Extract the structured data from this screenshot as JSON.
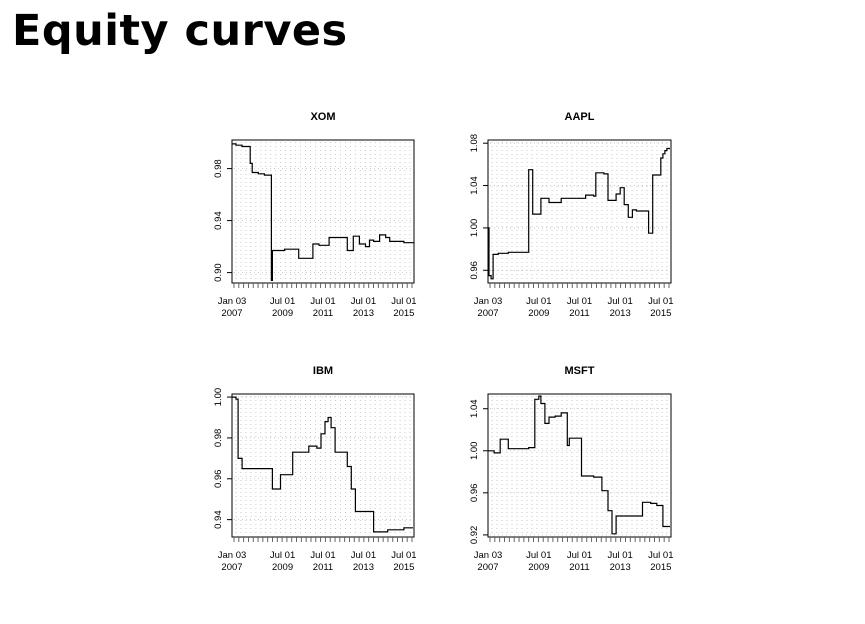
{
  "page_title": "Equity curves",
  "chart_data": [
    {
      "type": "line",
      "title": "XOM",
      "x_tick_labels": [
        [
          "Jan 03",
          "2007"
        ],
        [
          "Jul 01",
          "2009"
        ],
        [
          "Jul 01",
          "2011"
        ],
        [
          "Jul 01",
          "2013"
        ],
        [
          "Jul 01",
          "2015"
        ]
      ],
      "x_tick_positions": [
        2007.0,
        2009.5,
        2011.5,
        2013.5,
        2015.5
      ],
      "xlim": [
        2007.0,
        2016.0
      ],
      "y_ticks": [
        0.9,
        0.94,
        0.98
      ],
      "y_tick_labels": [
        "0.90",
        "0.94",
        "0.98"
      ],
      "ylim": [
        0.892,
        1.002
      ],
      "series": [
        {
          "x": [
            2007.0,
            2007.2,
            2007.5,
            2007.9,
            2008.0,
            2008.3,
            2008.6,
            2008.9,
            2008.95,
            2009.0,
            2009.6,
            2009.9,
            2010.3,
            2010.7,
            2011.0,
            2011.3,
            2011.8,
            2012.0,
            2012.3,
            2012.5,
            2012.7,
            2013.0,
            2013.3,
            2013.6,
            2013.8,
            2014.0,
            2014.3,
            2014.6,
            2014.8,
            2015.0,
            2015.5,
            2016.0
          ],
          "y": [
            0.999,
            0.998,
            0.997,
            0.984,
            0.977,
            0.976,
            0.975,
            0.975,
            0.894,
            0.917,
            0.918,
            0.918,
            0.911,
            0.911,
            0.922,
            0.921,
            0.927,
            0.927,
            0.927,
            0.927,
            0.917,
            0.928,
            0.922,
            0.92,
            0.925,
            0.924,
            0.929,
            0.927,
            0.924,
            0.924,
            0.923,
            0.923
          ]
        }
      ]
    },
    {
      "type": "line",
      "title": "AAPL",
      "x_tick_labels": [
        [
          "Jan 03",
          "2007"
        ],
        [
          "Jul 01",
          "2009"
        ],
        [
          "Jul 01",
          "2011"
        ],
        [
          "Jul 01",
          "2013"
        ],
        [
          "Jul 01",
          "2015"
        ]
      ],
      "x_tick_positions": [
        2007.0,
        2009.5,
        2011.5,
        2013.5,
        2015.5
      ],
      "xlim": [
        2007.0,
        2016.0
      ],
      "y_ticks": [
        0.96,
        1.0,
        1.04,
        1.08
      ],
      "y_tick_labels": [
        "0.96",
        "1.00",
        "1.04",
        "1.08"
      ],
      "ylim": [
        0.948,
        1.083
      ],
      "series": [
        {
          "x": [
            2007.0,
            2007.05,
            2007.15,
            2007.25,
            2007.5,
            2008.0,
            2008.5,
            2008.9,
            2009.0,
            2009.2,
            2009.55,
            2009.6,
            2010.0,
            2010.4,
            2010.6,
            2011.0,
            2011.4,
            2011.8,
            2012.0,
            2012.2,
            2012.3,
            2012.7,
            2012.9,
            2013.1,
            2013.3,
            2013.5,
            2013.7,
            2013.9,
            2014.1,
            2014.3,
            2014.6,
            2014.8,
            2014.9,
            2015.1,
            2015.3,
            2015.5,
            2015.6,
            2015.7,
            2015.8
          ],
          "y": [
            1.0,
            0.955,
            0.952,
            0.975,
            0.976,
            0.977,
            0.977,
            0.977,
            1.055,
            1.013,
            1.013,
            1.028,
            1.024,
            1.024,
            1.028,
            1.028,
            1.028,
            1.031,
            1.031,
            1.03,
            1.052,
            1.051,
            1.026,
            1.026,
            1.032,
            1.038,
            1.022,
            1.01,
            1.017,
            1.016,
            1.016,
            1.016,
            0.995,
            1.05,
            1.05,
            1.066,
            1.07,
            1.073,
            1.075
          ]
        }
      ]
    },
    {
      "type": "line",
      "title": "IBM",
      "x_tick_labels": [
        [
          "Jan 03",
          "2007"
        ],
        [
          "Jul 01",
          "2009"
        ],
        [
          "Jul 01",
          "2011"
        ],
        [
          "Jul 01",
          "2013"
        ],
        [
          "Jul 01",
          "2015"
        ]
      ],
      "x_tick_positions": [
        2007.0,
        2009.5,
        2011.5,
        2013.5,
        2015.5
      ],
      "xlim": [
        2007.0,
        2016.0
      ],
      "y_ticks": [
        0.94,
        0.96,
        0.98,
        1.0
      ],
      "y_tick_labels": [
        "0.94",
        "0.96",
        "0.98",
        "1.00"
      ],
      "ylim": [
        0.9315,
        1.0015
      ],
      "series": [
        {
          "x": [
            2007.0,
            2007.2,
            2007.3,
            2007.5,
            2008.0,
            2008.7,
            2009.0,
            2009.2,
            2009.4,
            2009.6,
            2010.0,
            2010.3,
            2010.8,
            2011.0,
            2011.2,
            2011.4,
            2011.6,
            2011.75,
            2011.9,
            2012.1,
            2012.4,
            2012.7,
            2012.9,
            2013.1,
            2013.4,
            2013.7,
            2014.0,
            2014.3,
            2014.7,
            2015.0,
            2015.3,
            2015.5,
            2015.9
          ],
          "y": [
            1.0,
            0.999,
            0.97,
            0.965,
            0.965,
            0.965,
            0.955,
            0.955,
            0.962,
            0.962,
            0.973,
            0.973,
            0.976,
            0.976,
            0.975,
            0.982,
            0.988,
            0.99,
            0.985,
            0.973,
            0.973,
            0.966,
            0.955,
            0.944,
            0.944,
            0.944,
            0.934,
            0.934,
            0.935,
            0.935,
            0.935,
            0.936,
            0.936
          ]
        }
      ]
    },
    {
      "type": "line",
      "title": "MSFT",
      "x_tick_labels": [
        [
          "Jan 03",
          "2007"
        ],
        [
          "Jul 01",
          "2009"
        ],
        [
          "Jul 01",
          "2011"
        ],
        [
          "Jul 01",
          "2013"
        ],
        [
          "Jul 01",
          "2015"
        ]
      ],
      "x_tick_positions": [
        2007.0,
        2009.5,
        2011.5,
        2013.5,
        2015.5
      ],
      "xlim": [
        2007.0,
        2016.0
      ],
      "y_ticks": [
        0.92,
        0.96,
        1.0,
        1.04
      ],
      "y_tick_labels": [
        "0.92",
        "0.96",
        "1.00",
        "1.04"
      ],
      "ylim": [
        0.918,
        1.054
      ],
      "series": [
        {
          "x": [
            2007.0,
            2007.3,
            2007.6,
            2008.0,
            2008.5,
            2009.0,
            2009.3,
            2009.5,
            2009.6,
            2009.8,
            2010.0,
            2010.3,
            2010.6,
            2010.9,
            2011.0,
            2011.3,
            2011.6,
            2011.9,
            2012.2,
            2012.6,
            2012.9,
            2013.1,
            2013.3,
            2013.7,
            2014.0,
            2014.3,
            2014.6,
            2015.0,
            2015.3,
            2015.4,
            2015.6,
            2015.8
          ],
          "y": [
            1.0,
            0.998,
            1.011,
            1.002,
            1.002,
            1.003,
            1.049,
            1.052,
            1.045,
            1.026,
            1.032,
            1.033,
            1.036,
            1.005,
            1.012,
            1.012,
            0.976,
            0.976,
            0.975,
            0.962,
            0.943,
            0.921,
            0.938,
            0.938,
            0.938,
            0.938,
            0.951,
            0.95,
            0.948,
            0.948,
            0.928,
            0.928
          ]
        }
      ]
    }
  ]
}
